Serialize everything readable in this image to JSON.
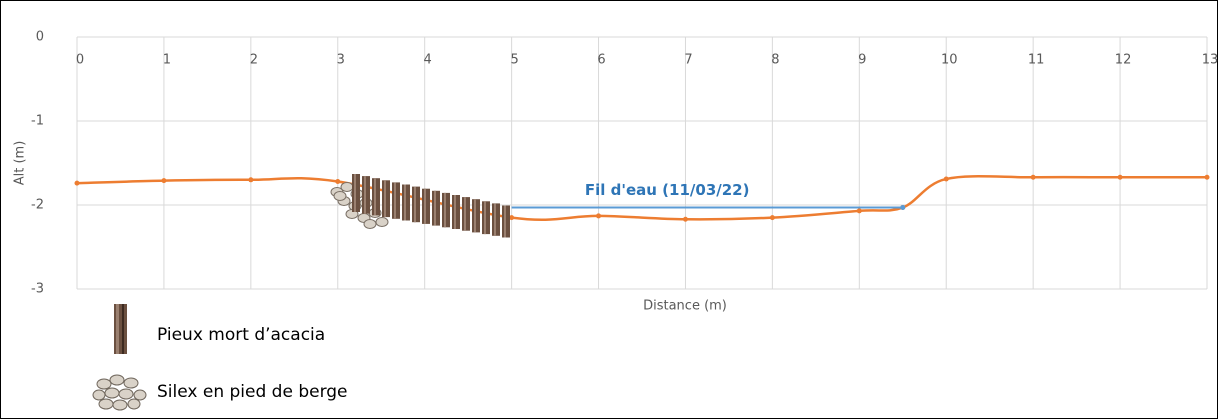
{
  "chart_data": {
    "type": "line",
    "x_label": "Distance (m)",
    "y_label": "Alt (m)",
    "xlim": [
      0,
      13
    ],
    "xticks": [
      0,
      1,
      2,
      3,
      4,
      5,
      6,
      7,
      8,
      9,
      10,
      11,
      12,
      13
    ],
    "ylim": [
      -3,
      0
    ],
    "yticks": [
      0,
      -1,
      -2,
      -3
    ],
    "grid": true,
    "series": [
      {
        "color": "#ED7D31",
        "x": [
          0,
          1,
          2,
          3,
          5,
          6,
          7,
          8,
          9,
          9.5,
          10,
          11,
          12,
          13
        ],
        "values": [
          -1.74,
          -1.71,
          -1.7,
          -1.72,
          -2.15,
          -2.13,
          -2.17,
          -2.15,
          -2.07,
          -2.03,
          -1.69,
          -1.67,
          -1.67,
          -1.67
        ]
      },
      {
        "name": "Fil d'eau (11/03/22)",
        "color": "#5B9BD5",
        "label_color": "#2E75B6",
        "x": [
          5,
          9.5
        ],
        "values": [
          -2.03,
          -2.03
        ]
      }
    ],
    "legend_items": [
      "Pieux mort d’acacia",
      "Silex en pied de berge"
    ]
  }
}
